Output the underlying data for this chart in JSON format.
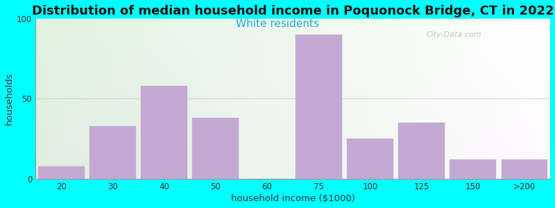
{
  "title": "Distribution of median household income in Poquonock Bridge, CT in 2022",
  "subtitle": "White residents",
  "xlabel": "household income ($1000)",
  "ylabel": "households",
  "title_fontsize": 13,
  "subtitle_fontsize": 11,
  "subtitle_color": "#22aadd",
  "background_color": "#00ffff",
  "bar_color": "#c4a8d4",
  "bar_edgecolor": "#c4a8d4",
  "tick_labels": [
    "20",
    "30",
    "40",
    "50",
    "60",
    "75",
    "100",
    "125",
    "150",
    ">200"
  ],
  "bin_edges": [
    0,
    1,
    2,
    3,
    4,
    5,
    6,
    7,
    8,
    9,
    10
  ],
  "values": [
    8,
    33,
    58,
    38,
    0,
    90,
    25,
    35,
    12,
    12
  ],
  "ylim": [
    0,
    100
  ],
  "yticks": [
    0,
    50,
    100
  ],
  "watermark": "City-Data.com"
}
